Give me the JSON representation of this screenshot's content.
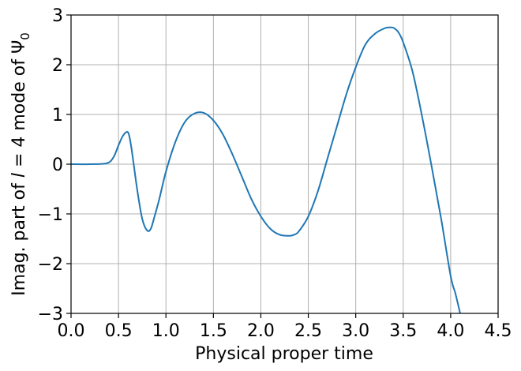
{
  "chart_data": {
    "type": "line",
    "title": "",
    "xlabel": "Physical proper time",
    "ylabel_parts": [
      "Imag. part of ",
      "l",
      " = 4 mode of Ψ",
      "0"
    ],
    "xlim": [
      0.0,
      4.5
    ],
    "ylim": [
      -3,
      3
    ],
    "xticks": [
      0.0,
      0.5,
      1.0,
      1.5,
      2.0,
      2.5,
      3.0,
      3.5,
      4.0,
      4.5
    ],
    "xtick_labels": [
      "0.0",
      "0.5",
      "1.0",
      "1.5",
      "2.0",
      "2.5",
      "3.0",
      "3.5",
      "4.0",
      "4.5"
    ],
    "yticks": [
      -3,
      -2,
      -1,
      0,
      1,
      2,
      3
    ],
    "ytick_labels": [
      "−3",
      "−2",
      "−1",
      "0",
      "1",
      "2",
      "3"
    ],
    "grid": true,
    "series": [
      {
        "color": "#1f77b4",
        "x": [
          0.0,
          0.2,
          0.38,
          0.45,
          0.5,
          0.55,
          0.6,
          0.63,
          0.66,
          0.7,
          0.75,
          0.8,
          0.84,
          0.88,
          0.93,
          1.0,
          1.1,
          1.2,
          1.3,
          1.4,
          1.5,
          1.6,
          1.7,
          1.8,
          1.9,
          2.0,
          2.1,
          2.2,
          2.3,
          2.35,
          2.4,
          2.5,
          2.6,
          2.7,
          2.8,
          2.9,
          3.0,
          3.1,
          3.2,
          3.3,
          3.35,
          3.4,
          3.45,
          3.5,
          3.6,
          3.7,
          3.8,
          3.9,
          4.0,
          4.05,
          4.1
        ],
        "y": [
          0.0,
          0.0,
          0.02,
          0.15,
          0.38,
          0.58,
          0.64,
          0.4,
          0.0,
          -0.55,
          -1.1,
          -1.33,
          -1.3,
          -1.05,
          -0.7,
          -0.15,
          0.45,
          0.85,
          1.02,
          1.03,
          0.88,
          0.6,
          0.2,
          -0.25,
          -0.7,
          -1.05,
          -1.3,
          -1.42,
          -1.44,
          -1.42,
          -1.35,
          -1.05,
          -0.55,
          0.1,
          0.75,
          1.4,
          1.95,
          2.4,
          2.62,
          2.73,
          2.75,
          2.74,
          2.65,
          2.45,
          1.85,
          0.95,
          -0.05,
          -1.1,
          -2.25,
          -2.6,
          -3.0
        ]
      }
    ]
  }
}
